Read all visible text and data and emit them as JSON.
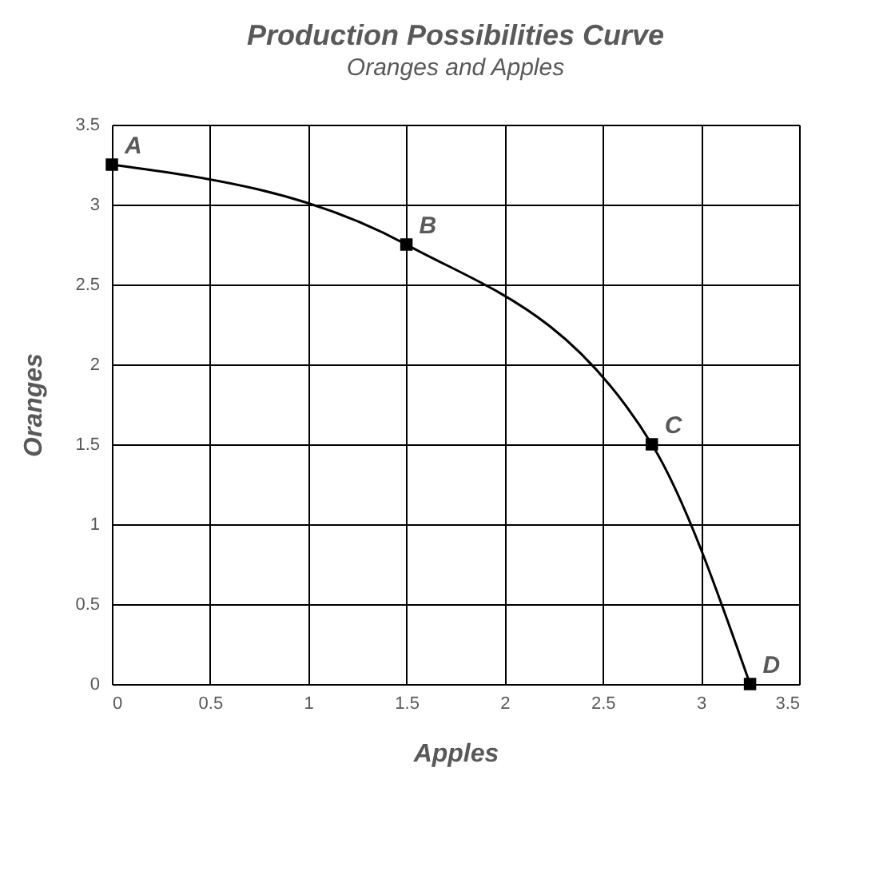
{
  "chart_data": {
    "type": "line",
    "title": "Production Possibilities Curve",
    "subtitle": "Oranges and Apples",
    "xlabel": "Apples",
    "ylabel": "Oranges",
    "x": [
      0,
      1.5,
      2.75,
      3.25
    ],
    "series": [
      {
        "color": "#000000",
        "values": [
          3.25,
          2.75,
          1.5,
          0
        ]
      }
    ],
    "xlim": [
      0,
      3.5
    ],
    "xticks": [
      0,
      0.5,
      1,
      1.5,
      2,
      2.5,
      3,
      3.5
    ],
    "ylim": [
      0,
      3.5
    ],
    "yticks": [
      0,
      0.5,
      1,
      1.5,
      2,
      2.5,
      3,
      3.5
    ],
    "grid": true,
    "marker": "square",
    "line_style": "solid",
    "annotations": [
      {
        "text": "A",
        "x": 0,
        "y": 3.25
      },
      {
        "text": "B",
        "x": 1.5,
        "y": 2.75
      },
      {
        "text": "C",
        "x": 2.75,
        "y": 1.5
      },
      {
        "text": "D",
        "x": 3.25,
        "y": 0
      }
    ]
  }
}
